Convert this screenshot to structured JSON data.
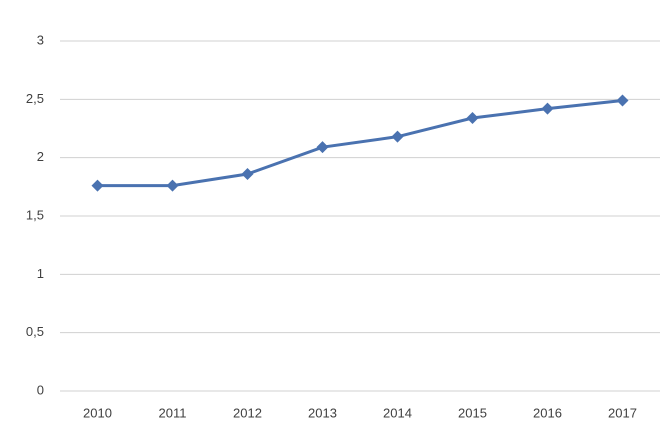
{
  "chart_data": {
    "type": "line",
    "categories": [
      "2010",
      "2011",
      "2012",
      "2013",
      "2014",
      "2015",
      "2016",
      "2017"
    ],
    "values": [
      1.76,
      1.76,
      1.86,
      2.09,
      2.18,
      2.34,
      2.42,
      2.49
    ],
    "color": "#4a72b0",
    "ylim": [
      0,
      3
    ],
    "yticks": [
      0,
      {
        "value": 0.5,
        "label": "0,5"
      },
      1,
      {
        "value": 1.5,
        "label": "1,5"
      },
      2,
      {
        "value": 2.5,
        "label": "2,5"
      },
      3
    ],
    "grid": true
  }
}
